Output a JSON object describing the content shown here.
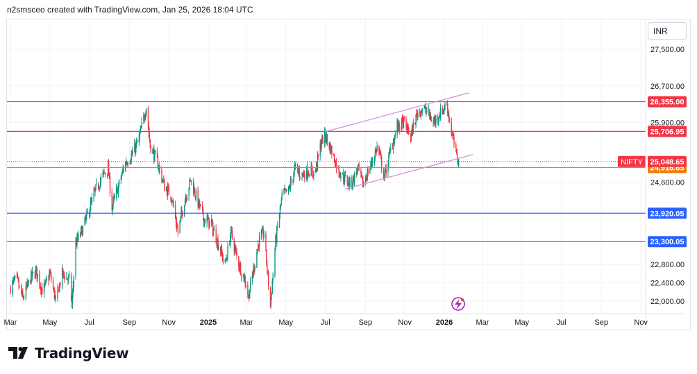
{
  "header": {
    "attribution": "n2smsceo created with TradingView.com, Jan 25, 2026 18:04 UTC"
  },
  "currency": "INR",
  "logo": {
    "text": "TradingView"
  },
  "colors": {
    "up": "#089981",
    "down": "#f23645",
    "resistance": "#f23645",
    "support": "#2962ff",
    "channel": "#ce93d8",
    "orange_line": "#f57c00",
    "grid": "#f0f3fa"
  },
  "chart_data": {
    "type": "candlestick",
    "symbol": "NIFTY",
    "last_price": 25048.65,
    "y_ticks": [
      27500,
      26700,
      25900,
      24600,
      22800,
      22400,
      22000
    ],
    "x_ticks": [
      {
        "label": "Mar",
        "date": "2024-03-01"
      },
      {
        "label": "May",
        "date": "2024-05-01"
      },
      {
        "label": "Jul",
        "date": "2024-07-01"
      },
      {
        "label": "Sep",
        "date": "2024-09-01"
      },
      {
        "label": "Nov",
        "date": "2024-11-01"
      },
      {
        "label": "2025",
        "date": "2025-01-01",
        "bold": true
      },
      {
        "label": "Mar",
        "date": "2025-03-01"
      },
      {
        "label": "May",
        "date": "2025-05-01"
      },
      {
        "label": "Jul",
        "date": "2025-07-01"
      },
      {
        "label": "Sep",
        "date": "2025-09-01"
      },
      {
        "label": "Nov",
        "date": "2025-11-01"
      },
      {
        "label": "2026",
        "date": "2026-01-01",
        "bold": true
      },
      {
        "label": "Mar",
        "date": "2026-03-01"
      },
      {
        "label": "May",
        "date": "2026-05-01"
      },
      {
        "label": "Jul",
        "date": "2026-07-01"
      },
      {
        "label": "Sep",
        "date": "2026-09-01"
      },
      {
        "label": "Nov",
        "date": "2026-11-01"
      }
    ],
    "horizontal_levels": [
      {
        "price": 26355.0,
        "label": "26,355.00",
        "color": "#f23645"
      },
      {
        "price": 25706.95,
        "label": "25,706.95",
        "color": "#f23645"
      },
      {
        "price": 24916.65,
        "label": "24,916.65",
        "color": "#f57c00"
      },
      {
        "price": 23920.05,
        "label": "23,920.05",
        "color": "#2962ff"
      },
      {
        "price": 23300.05,
        "label": "23,300.05",
        "color": "#2962ff"
      }
    ],
    "last_label": "25,048.65",
    "channel": [
      {
        "from": {
          "date": "2025-07-01",
          "price": 25700
        },
        "to": {
          "date": "2026-02-08",
          "price": 26550
        }
      },
      {
        "from": {
          "date": "2025-08-01",
          "price": 24450
        },
        "to": {
          "date": "2026-02-14",
          "price": 25200
        }
      }
    ],
    "path": [
      [
        "2024-03-01",
        22300
      ],
      [
        "2024-03-10",
        22500
      ],
      [
        "2024-03-20",
        22050
      ],
      [
        "2024-04-01",
        22500
      ],
      [
        "2024-04-10",
        22650
      ],
      [
        "2024-04-20",
        22200
      ],
      [
        "2024-05-01",
        22600
      ],
      [
        "2024-05-10",
        22000
      ],
      [
        "2024-05-20",
        22600
      ],
      [
        "2024-06-01",
        22450
      ],
      [
        "2024-06-04",
        21900
      ],
      [
        "2024-06-10",
        23250
      ],
      [
        "2024-06-20",
        23550
      ],
      [
        "2024-07-01",
        24000
      ],
      [
        "2024-07-10",
        24400
      ],
      [
        "2024-07-20",
        24700
      ],
      [
        "2024-07-30",
        24900
      ],
      [
        "2024-08-05",
        24050
      ],
      [
        "2024-08-15",
        24500
      ],
      [
        "2024-08-25",
        25000
      ],
      [
        "2024-09-05",
        25200
      ],
      [
        "2024-09-15",
        25500
      ],
      [
        "2024-09-27",
        26250
      ],
      [
        "2024-10-03",
        25400
      ],
      [
        "2024-10-15",
        25000
      ],
      [
        "2024-10-25",
        24500
      ],
      [
        "2024-11-05",
        24300
      ],
      [
        "2024-11-15",
        23500
      ],
      [
        "2024-11-25",
        24200
      ],
      [
        "2024-12-05",
        24650
      ],
      [
        "2024-12-15",
        24200
      ],
      [
        "2024-12-25",
        23800
      ],
      [
        "2025-01-05",
        23700
      ],
      [
        "2025-01-15",
        23300
      ],
      [
        "2025-01-27",
        22800
      ],
      [
        "2025-02-05",
        23500
      ],
      [
        "2025-02-15",
        22900
      ],
      [
        "2025-02-28",
        22400
      ],
      [
        "2025-03-04",
        22100
      ],
      [
        "2025-03-10",
        22550
      ],
      [
        "2025-03-20",
        23300
      ],
      [
        "2025-03-28",
        23500
      ],
      [
        "2025-04-07",
        21900
      ],
      [
        "2025-04-15",
        23300
      ],
      [
        "2025-04-25",
        24300
      ],
      [
        "2025-05-05",
        24400
      ],
      [
        "2025-05-15",
        24900
      ],
      [
        "2025-05-25",
        24750
      ],
      [
        "2025-06-05",
        24850
      ],
      [
        "2025-06-15",
        24800
      ],
      [
        "2025-06-25",
        25500
      ],
      [
        "2025-07-01",
        25600
      ],
      [
        "2025-07-10",
        25300
      ],
      [
        "2025-07-20",
        24900
      ],
      [
        "2025-08-01",
        24650
      ],
      [
        "2025-08-10",
        24550
      ],
      [
        "2025-08-20",
        24900
      ],
      [
        "2025-08-28",
        24550
      ],
      [
        "2025-09-10",
        25000
      ],
      [
        "2025-09-20",
        25400
      ],
      [
        "2025-09-30",
        24700
      ],
      [
        "2025-10-10",
        25300
      ],
      [
        "2025-10-20",
        25800
      ],
      [
        "2025-10-30",
        25900
      ],
      [
        "2025-11-10",
        25600
      ],
      [
        "2025-11-20",
        26100
      ],
      [
        "2025-11-27",
        26200
      ],
      [
        "2025-12-05",
        26150
      ],
      [
        "2025-12-15",
        25900
      ],
      [
        "2025-12-25",
        26100
      ],
      [
        "2026-01-05",
        26300
      ],
      [
        "2026-01-12",
        25700
      ],
      [
        "2026-01-20",
        25150
      ],
      [
        "2026-01-23",
        25048
      ]
    ]
  }
}
